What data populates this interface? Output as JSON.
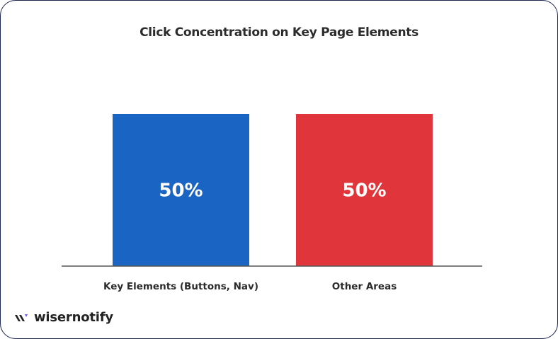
{
  "chart_data": {
    "type": "bar",
    "title": "Click Concentration on Key Page Elements",
    "categories": [
      "Key Elements (Buttons, Nav)",
      "Other Areas"
    ],
    "values": [
      50,
      50
    ],
    "data_labels": [
      "50%",
      "50%"
    ],
    "colors": [
      "#1a64c4",
      "#e0363b"
    ],
    "ylim": [
      0,
      50
    ],
    "grid": false,
    "xlabel": "",
    "ylabel": ""
  },
  "brand": {
    "name": "wisernotify",
    "accent": "#6a5cff"
  }
}
